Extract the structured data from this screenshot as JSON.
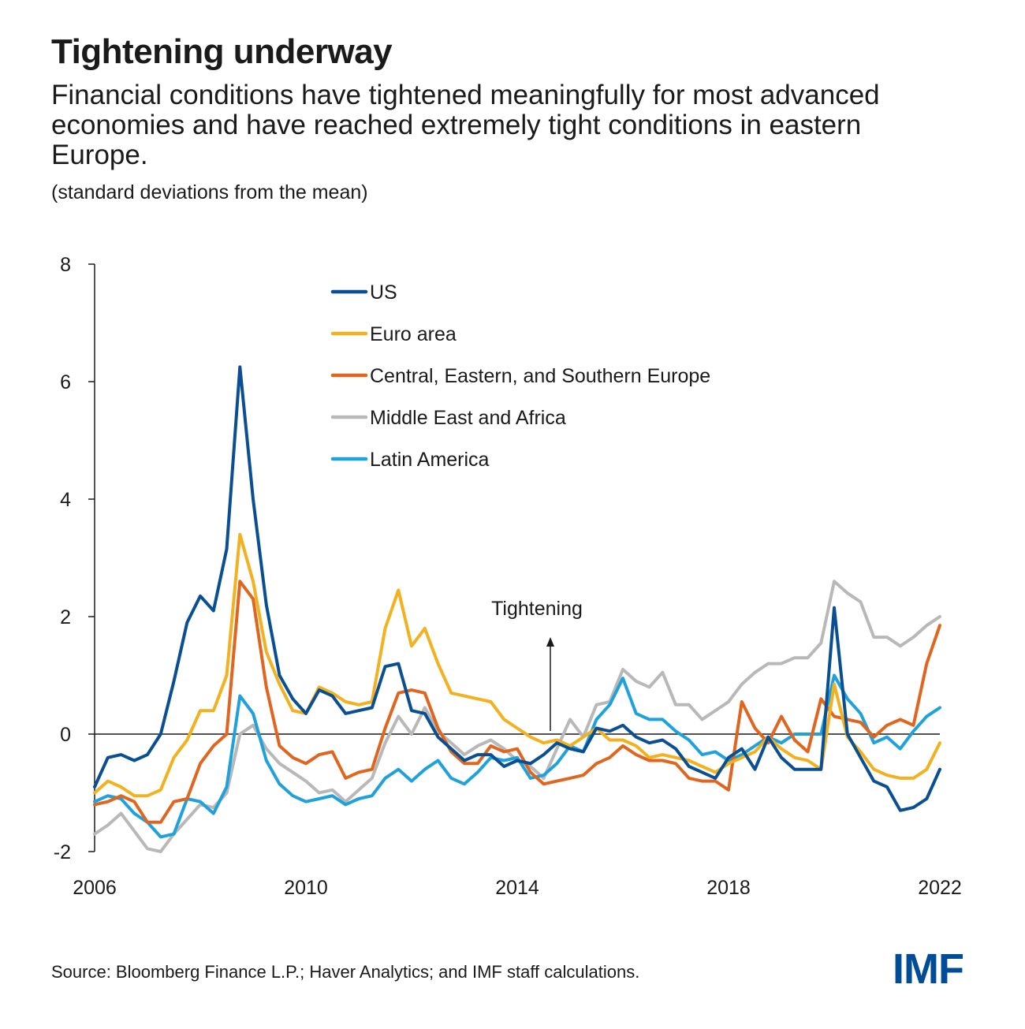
{
  "title": "Tightening underway",
  "subtitle": "Financial conditions have tightened meaningfully for most advanced economies and have reached extremely tight conditions in eastern Europe.",
  "unit": "(standard deviations from the mean)",
  "source": "Source: Bloomberg Finance L.P.; Haver Analytics; and IMF staff calculations.",
  "logo": "IMF",
  "colors": {
    "US": "#0b4f93",
    "Euro area": "#f2b11f",
    "Central, Eastern, and Southern Europe": "#e0661f",
    "Middle East and Africa": "#b8b8b8",
    "Latin America": "#1fa2dc"
  },
  "chart_data": {
    "type": "line",
    "xlim": [
      2006,
      2022
    ],
    "ylim": [
      -2,
      8
    ],
    "xticks": [
      "2006",
      "2010",
      "2014",
      "2018",
      "2022"
    ],
    "yticks": [
      "8",
      "6",
      "4",
      "2",
      "0",
      "-2"
    ],
    "annotation": "Tightening",
    "legend_position": "top-center",
    "series": [
      {
        "name": "US",
        "x": [
          2006.0,
          2006.25,
          2006.5,
          2006.75,
          2007.0,
          2007.25,
          2007.5,
          2007.75,
          2008.0,
          2008.25,
          2008.5,
          2008.75,
          2009.0,
          2009.25,
          2009.5,
          2009.75,
          2010.0,
          2010.25,
          2010.5,
          2010.75,
          2011.0,
          2011.25,
          2011.5,
          2011.75,
          2012.0,
          2012.25,
          2012.5,
          2012.75,
          2013.0,
          2013.25,
          2013.5,
          2013.75,
          2014.0,
          2014.25,
          2014.5,
          2014.75,
          2015.0,
          2015.25,
          2015.5,
          2015.75,
          2016.0,
          2016.25,
          2016.5,
          2016.75,
          2017.0,
          2017.25,
          2017.5,
          2017.75,
          2018.0,
          2018.25,
          2018.5,
          2018.75,
          2019.0,
          2019.25,
          2019.5,
          2019.75,
          2020.0,
          2020.25,
          2020.5,
          2020.75,
          2021.0,
          2021.25,
          2021.5,
          2021.75,
          2022.0
        ],
        "values": [
          -0.9,
          -0.4,
          -0.35,
          -0.45,
          -0.35,
          0.0,
          0.9,
          1.9,
          2.35,
          2.1,
          3.15,
          6.25,
          4.0,
          2.2,
          1.0,
          0.6,
          0.35,
          0.75,
          0.65,
          0.35,
          0.4,
          0.45,
          1.15,
          1.2,
          0.4,
          0.35,
          -0.05,
          -0.25,
          -0.45,
          -0.35,
          -0.35,
          -0.55,
          -0.45,
          -0.5,
          -0.35,
          -0.15,
          -0.25,
          -0.3,
          0.1,
          0.05,
          0.15,
          -0.05,
          -0.15,
          -0.1,
          -0.25,
          -0.55,
          -0.65,
          -0.75,
          -0.4,
          -0.25,
          -0.6,
          -0.05,
          -0.4,
          -0.6,
          -0.6,
          -0.6,
          2.15,
          0.0,
          -0.4,
          -0.8,
          -0.9,
          -1.3,
          -1.25,
          -1.1,
          -0.6
        ]
      },
      {
        "name": "Euro area",
        "x": [
          2006.0,
          2006.25,
          2006.5,
          2006.75,
          2007.0,
          2007.25,
          2007.5,
          2007.75,
          2008.0,
          2008.25,
          2008.5,
          2008.75,
          2009.0,
          2009.25,
          2009.5,
          2009.75,
          2010.0,
          2010.25,
          2010.5,
          2010.75,
          2011.0,
          2011.25,
          2011.5,
          2011.75,
          2012.0,
          2012.25,
          2012.5,
          2012.75,
          2013.0,
          2013.25,
          2013.5,
          2013.75,
          2014.0,
          2014.25,
          2014.5,
          2014.75,
          2015.0,
          2015.25,
          2015.5,
          2015.75,
          2016.0,
          2016.25,
          2016.5,
          2016.75,
          2017.0,
          2017.25,
          2017.5,
          2017.75,
          2018.0,
          2018.25,
          2018.5,
          2018.75,
          2019.0,
          2019.25,
          2019.5,
          2019.75,
          2020.0,
          2020.25,
          2020.5,
          2020.75,
          2021.0,
          2021.25,
          2021.5,
          2021.75,
          2022.0
        ],
        "values": [
          -1.0,
          -0.8,
          -0.9,
          -1.05,
          -1.05,
          -0.95,
          -0.4,
          -0.1,
          0.4,
          0.4,
          1.0,
          3.4,
          2.6,
          1.4,
          0.85,
          0.4,
          0.35,
          0.8,
          0.7,
          0.55,
          0.5,
          0.55,
          1.8,
          2.45,
          1.5,
          1.8,
          1.2,
          0.7,
          0.65,
          0.6,
          0.55,
          0.25,
          0.1,
          -0.05,
          -0.15,
          -0.1,
          -0.2,
          -0.05,
          0.1,
          -0.1,
          -0.1,
          -0.2,
          -0.4,
          -0.35,
          -0.4,
          -0.45,
          -0.55,
          -0.65,
          -0.5,
          -0.4,
          -0.3,
          -0.05,
          -0.25,
          -0.4,
          -0.45,
          -0.6,
          0.85,
          -0.05,
          -0.3,
          -0.6,
          -0.7,
          -0.75,
          -0.75,
          -0.6,
          -0.15
        ]
      },
      {
        "name": "Central, Eastern, and Southern Europe",
        "x": [
          2006.0,
          2006.25,
          2006.5,
          2006.75,
          2007.0,
          2007.25,
          2007.5,
          2007.75,
          2008.0,
          2008.25,
          2008.5,
          2008.75,
          2009.0,
          2009.25,
          2009.5,
          2009.75,
          2010.0,
          2010.25,
          2010.5,
          2010.75,
          2011.0,
          2011.25,
          2011.5,
          2011.75,
          2012.0,
          2012.25,
          2012.5,
          2012.75,
          2013.0,
          2013.25,
          2013.5,
          2013.75,
          2014.0,
          2014.25,
          2014.5,
          2014.75,
          2015.0,
          2015.25,
          2015.5,
          2015.75,
          2016.0,
          2016.25,
          2016.5,
          2016.75,
          2017.0,
          2017.25,
          2017.5,
          2017.75,
          2018.0,
          2018.25,
          2018.5,
          2018.75,
          2019.0,
          2019.25,
          2019.5,
          2019.75,
          2020.0,
          2020.25,
          2020.5,
          2020.75,
          2021.0,
          2021.25,
          2021.5,
          2021.75,
          2022.0
        ],
        "values": [
          -1.2,
          -1.15,
          -1.05,
          -1.15,
          -1.5,
          -1.5,
          -1.15,
          -1.1,
          -0.5,
          -0.2,
          0.0,
          2.6,
          2.3,
          0.8,
          -0.2,
          -0.4,
          -0.5,
          -0.35,
          -0.3,
          -0.75,
          -0.65,
          -0.6,
          0.1,
          0.7,
          0.75,
          0.7,
          0.1,
          -0.3,
          -0.5,
          -0.5,
          -0.2,
          -0.3,
          -0.25,
          -0.65,
          -0.85,
          -0.8,
          -0.75,
          -0.7,
          -0.5,
          -0.4,
          -0.2,
          -0.35,
          -0.45,
          -0.45,
          -0.5,
          -0.75,
          -0.8,
          -0.8,
          -0.95,
          0.55,
          0.1,
          -0.15,
          0.3,
          -0.1,
          -0.3,
          0.6,
          0.3,
          0.25,
          0.2,
          -0.05,
          0.15,
          0.25,
          0.15,
          1.2,
          1.85
        ]
      },
      {
        "name": "Middle East and Africa",
        "x": [
          2006.0,
          2006.25,
          2006.5,
          2006.75,
          2007.0,
          2007.25,
          2007.5,
          2007.75,
          2008.0,
          2008.25,
          2008.5,
          2008.75,
          2009.0,
          2009.25,
          2009.5,
          2009.75,
          2010.0,
          2010.25,
          2010.5,
          2010.75,
          2011.0,
          2011.25,
          2011.5,
          2011.75,
          2012.0,
          2012.25,
          2012.5,
          2012.75,
          2013.0,
          2013.25,
          2013.5,
          2013.75,
          2014.0,
          2014.25,
          2014.5,
          2014.75,
          2015.0,
          2015.25,
          2015.5,
          2015.75,
          2016.0,
          2016.25,
          2016.5,
          2016.75,
          2017.0,
          2017.25,
          2017.5,
          2017.75,
          2018.0,
          2018.25,
          2018.5,
          2018.75,
          2019.0,
          2019.25,
          2019.5,
          2019.75,
          2020.0,
          2020.25,
          2020.5,
          2020.75,
          2021.0,
          2021.25,
          2021.5,
          2021.75,
          2022.0
        ],
        "values": [
          -1.7,
          -1.55,
          -1.35,
          -1.65,
          -1.95,
          -2.0,
          -1.7,
          -1.45,
          -1.2,
          -1.25,
          -1.0,
          0.0,
          0.15,
          -0.25,
          -0.5,
          -0.65,
          -0.8,
          -1.0,
          -0.95,
          -1.15,
          -0.95,
          -0.75,
          -0.15,
          0.3,
          0.0,
          0.45,
          0.05,
          -0.15,
          -0.35,
          -0.2,
          -0.1,
          -0.25,
          -0.45,
          -0.55,
          -0.75,
          -0.25,
          0.25,
          -0.05,
          0.5,
          0.55,
          1.1,
          0.9,
          0.8,
          1.05,
          0.5,
          0.5,
          0.25,
          0.4,
          0.55,
          0.85,
          1.05,
          1.2,
          1.2,
          1.3,
          1.3,
          1.55,
          2.6,
          2.4,
          2.25,
          1.65,
          1.65,
          1.5,
          1.65,
          1.85,
          2.0
        ]
      },
      {
        "name": "Latin America",
        "x": [
          2006.0,
          2006.25,
          2006.5,
          2006.75,
          2007.0,
          2007.25,
          2007.5,
          2007.75,
          2008.0,
          2008.25,
          2008.5,
          2008.75,
          2009.0,
          2009.25,
          2009.5,
          2009.75,
          2010.0,
          2010.25,
          2010.5,
          2010.75,
          2011.0,
          2011.25,
          2011.5,
          2011.75,
          2012.0,
          2012.25,
          2012.5,
          2012.75,
          2013.0,
          2013.25,
          2013.5,
          2013.75,
          2014.0,
          2014.25,
          2014.5,
          2014.75,
          2015.0,
          2015.25,
          2015.5,
          2015.75,
          2016.0,
          2016.25,
          2016.5,
          2016.75,
          2017.0,
          2017.25,
          2017.5,
          2017.75,
          2018.0,
          2018.25,
          2018.5,
          2018.75,
          2019.0,
          2019.25,
          2019.5,
          2019.75,
          2020.0,
          2020.25,
          2020.5,
          2020.75,
          2021.0,
          2021.25,
          2021.5,
          2021.75,
          2022.0
        ],
        "values": [
          -1.15,
          -1.05,
          -1.1,
          -1.35,
          -1.5,
          -1.75,
          -1.7,
          -1.1,
          -1.15,
          -1.35,
          -0.9,
          0.65,
          0.35,
          -0.45,
          -0.85,
          -1.05,
          -1.15,
          -1.1,
          -1.05,
          -1.2,
          -1.1,
          -1.05,
          -0.75,
          -0.6,
          -0.8,
          -0.6,
          -0.45,
          -0.75,
          -0.85,
          -0.65,
          -0.4,
          -0.45,
          -0.4,
          -0.75,
          -0.7,
          -0.5,
          -0.2,
          -0.3,
          0.25,
          0.5,
          0.95,
          0.35,
          0.25,
          0.25,
          0.05,
          -0.1,
          -0.35,
          -0.3,
          -0.45,
          -0.35,
          -0.2,
          -0.05,
          -0.15,
          0.0,
          0.0,
          0.0,
          1.0,
          0.6,
          0.35,
          -0.15,
          -0.05,
          -0.25,
          0.05,
          0.3,
          0.45
        ]
      }
    ]
  }
}
